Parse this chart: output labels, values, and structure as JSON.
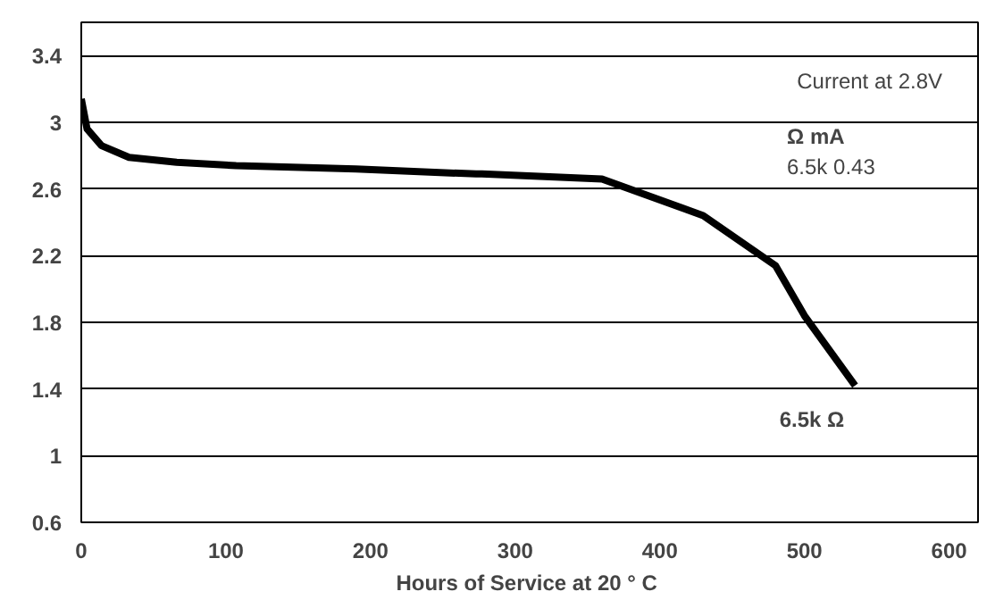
{
  "chart_data": {
    "type": "line",
    "xlabel": "Hours of Service at 20  ° C",
    "x": [
      0,
      4,
      14,
      33,
      66,
      107,
      190,
      273,
      277,
      360,
      430,
      480,
      500,
      535
    ],
    "series": [
      {
        "color": "#000000",
        "values": [
          3.14,
          2.96,
          2.86,
          2.79,
          2.76,
          2.74,
          2.72,
          2.69,
          2.69,
          2.66,
          2.44,
          2.14,
          1.84,
          1.42
        ]
      }
    ],
    "xlim": [
      0,
      620
    ],
    "ylim": [
      0.6,
      3.6
    ],
    "xticks": [
      0,
      100,
      200,
      300,
      400,
      500,
      600
    ],
    "yticks": [
      0.6,
      1,
      1.4,
      1.8,
      2.2,
      2.6,
      3,
      3.4
    ],
    "grid": "y",
    "marker": "none",
    "line_style": "solid",
    "annotations": [
      "Current at 2.8V",
      "Ω      mA",
      "6.5k  0.43",
      {
        "text": "6.5k Ω",
        "x": 535,
        "y": 1.42
      }
    ]
  }
}
